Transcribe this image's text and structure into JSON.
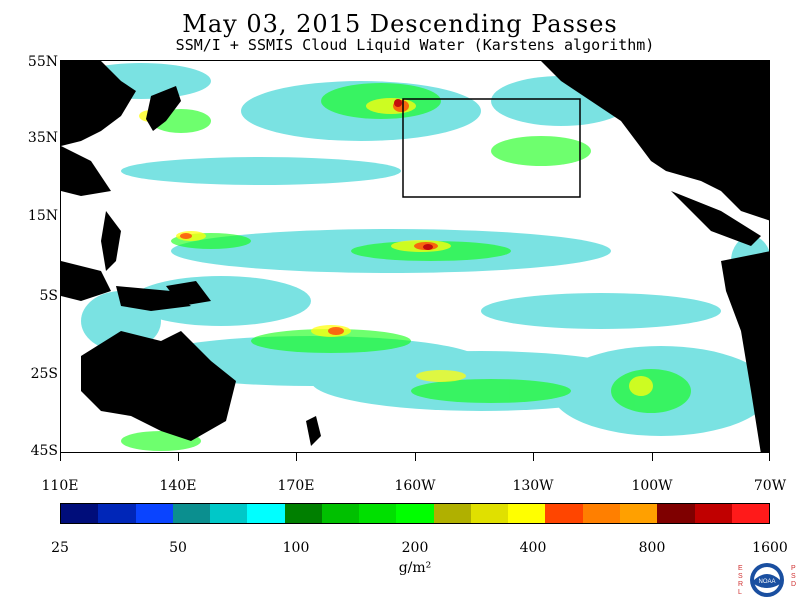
{
  "title": "May 03, 2015  Descending Passes",
  "subtitle": "SSM/I + SSMIS Cloud Liquid Water (Karstens algorithm)",
  "lat_labels": [
    "55N",
    "35N",
    "15N",
    "5S",
    "25S",
    "45S"
  ],
  "lon_labels": [
    "110E",
    "140E",
    "170E",
    "160W",
    "130W",
    "100W",
    "70W"
  ],
  "colorbar": {
    "colors": [
      "#000d7a",
      "#0026b8",
      "#0a44ff",
      "#0b8f8f",
      "#00c8c8",
      "#00ffff",
      "#007f00",
      "#00c000",
      "#00e000",
      "#00ff00",
      "#b0b000",
      "#e0e000",
      "#ffff00",
      "#ff4500",
      "#ff7f00",
      "#ffa000",
      "#7f0000",
      "#c00000",
      "#ff1a1a"
    ],
    "tick_labels": [
      "25",
      "50",
      "100",
      "200",
      "400",
      "800",
      "1600"
    ]
  },
  "units": "g/m²",
  "logo": {
    "left_letters": "ESRL",
    "right_letters": "PSD",
    "center_text": "NOAA"
  },
  "colors": {
    "land": "#000000",
    "background": "#ffffff",
    "box": "#000000"
  }
}
